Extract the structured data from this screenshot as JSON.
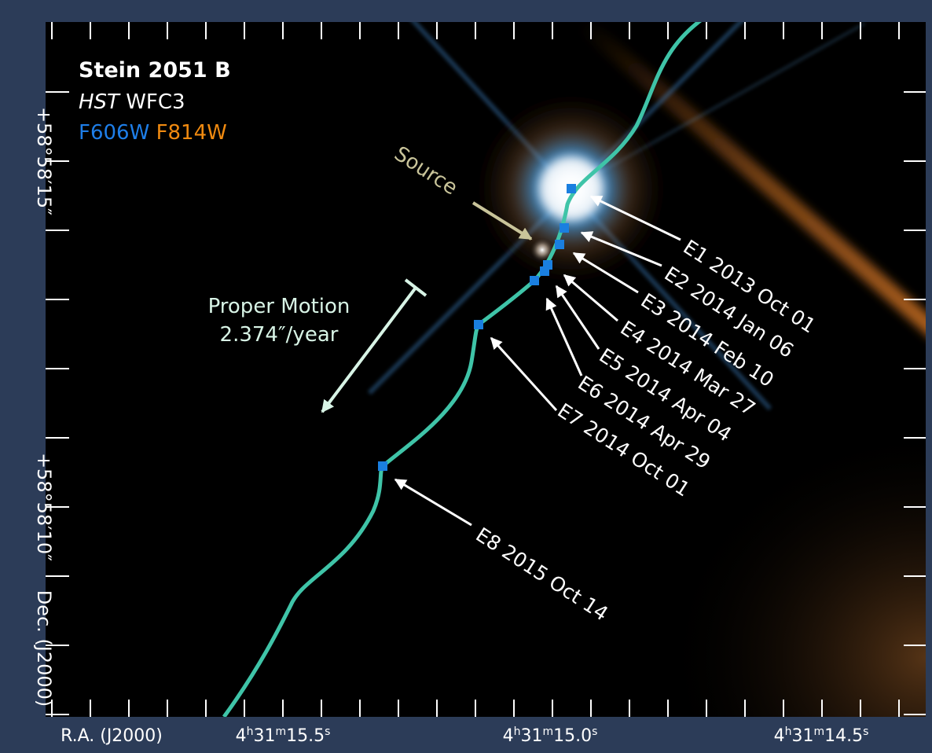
{
  "legend": {
    "title": "Stein 2051 B",
    "telescope": "HST",
    "instrument": "WFC3",
    "filter_blue": "F606W",
    "filter_orange": "F814W"
  },
  "source_label": "Source",
  "proper_motion": {
    "label": "Proper Motion",
    "rate": "2.374″/year"
  },
  "epochs": [
    {
      "label": "E1 2013 Oct 01"
    },
    {
      "label": "E2 2014 Jan 06"
    },
    {
      "label": "E3 2014 Feb 10"
    },
    {
      "label": "E4 2014 Mar 27"
    },
    {
      "label": "E5 2014 Apr 04"
    },
    {
      "label": "E6 2014 Apr 29"
    },
    {
      "label": "E7 2014 Oct 01"
    },
    {
      "label": "E8 2015 Oct 14"
    }
  ],
  "axes": {
    "ra_label": "R.A. (J2000)",
    "ra_ticks": [
      [
        "4",
        "h",
        "31",
        "m",
        "15.5",
        "s"
      ],
      [
        "4",
        "h",
        "31",
        "m",
        "15.0",
        "s"
      ],
      [
        "4",
        "h",
        "31",
        "m",
        "14.5",
        "s"
      ]
    ],
    "dec_label": "Dec. (J2000)",
    "dec_ticks": [
      "+58°58′15″",
      "+58°58′10″"
    ]
  }
}
